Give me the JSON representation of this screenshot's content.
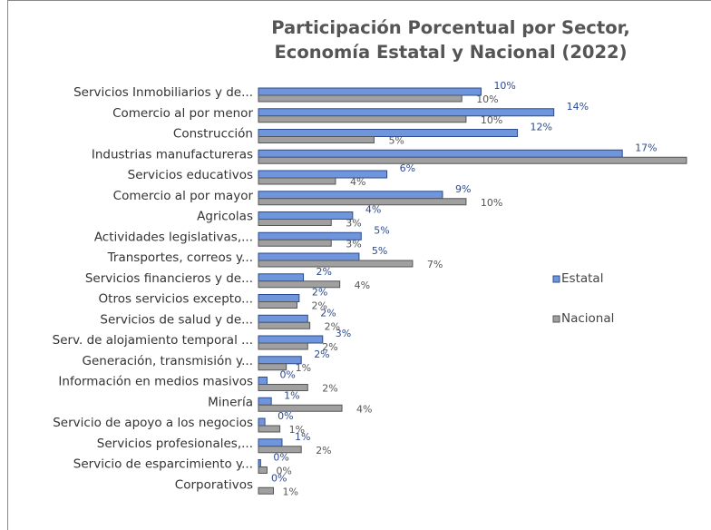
{
  "chart_data": {
    "type": "hbar",
    "title": "Participación Porcentual por Sector, Economía Estatal y Nacional (2022)",
    "categories": [
      "Servicios Inmobiliarios y de...",
      "Comercio al por menor",
      "Construcción",
      "Industrias manufactureras",
      "Servicios educativos",
      "Comercio al por mayor",
      "Agricolas",
      "Actividades legislativas,...",
      "Transportes, correos y...",
      "Servicios financieros y de...",
      "Otros servicios excepto...",
      "Servicios de salud y de...",
      "Serv. de alojamiento temporal ...",
      "Generación, transmisión y...",
      "Información en medios masivos",
      "Minería",
      "Servicio de apoyo a los negocios",
      "Servicios profesionales,...",
      "Servicio de esparcimiento  y...",
      "Corporativos"
    ],
    "series": [
      {
        "name": "Estatal",
        "color": "#6f96dc",
        "values": [
          10.4,
          13.8,
          12.1,
          17.0,
          6.0,
          8.6,
          4.4,
          4.8,
          4.7,
          2.1,
          1.9,
          2.3,
          3.0,
          2.0,
          0.4,
          0.6,
          0.3,
          1.1,
          0.1,
          0.0
        ],
        "value_labels": [
          "10%",
          "14%",
          "12%",
          "17%",
          "6%",
          "9%",
          "4%",
          "5%",
          "5%",
          "2%",
          "2%",
          "2%",
          "3%",
          "2%",
          "0%",
          "1%",
          "0%",
          "1%",
          "0%",
          "0%"
        ]
      },
      {
        "name": "Nacional",
        "color": "#a0a0a0",
        "values": [
          9.5,
          9.7,
          5.4,
          20.0,
          3.6,
          9.7,
          3.4,
          3.4,
          7.2,
          3.8,
          1.8,
          2.4,
          2.3,
          1.3,
          2.3,
          3.9,
          1.0,
          2.0,
          0.4,
          0.7
        ],
        "value_labels": [
          "10%",
          "10%",
          "5%",
          null,
          "4%",
          "10%",
          "3%",
          "3%",
          "7%",
          "4%",
          "2%",
          "2%",
          "2%",
          "1%",
          "2%",
          "4%",
          "1%",
          "2%",
          "0%",
          "1%"
        ]
      }
    ],
    "legend": "right"
  }
}
